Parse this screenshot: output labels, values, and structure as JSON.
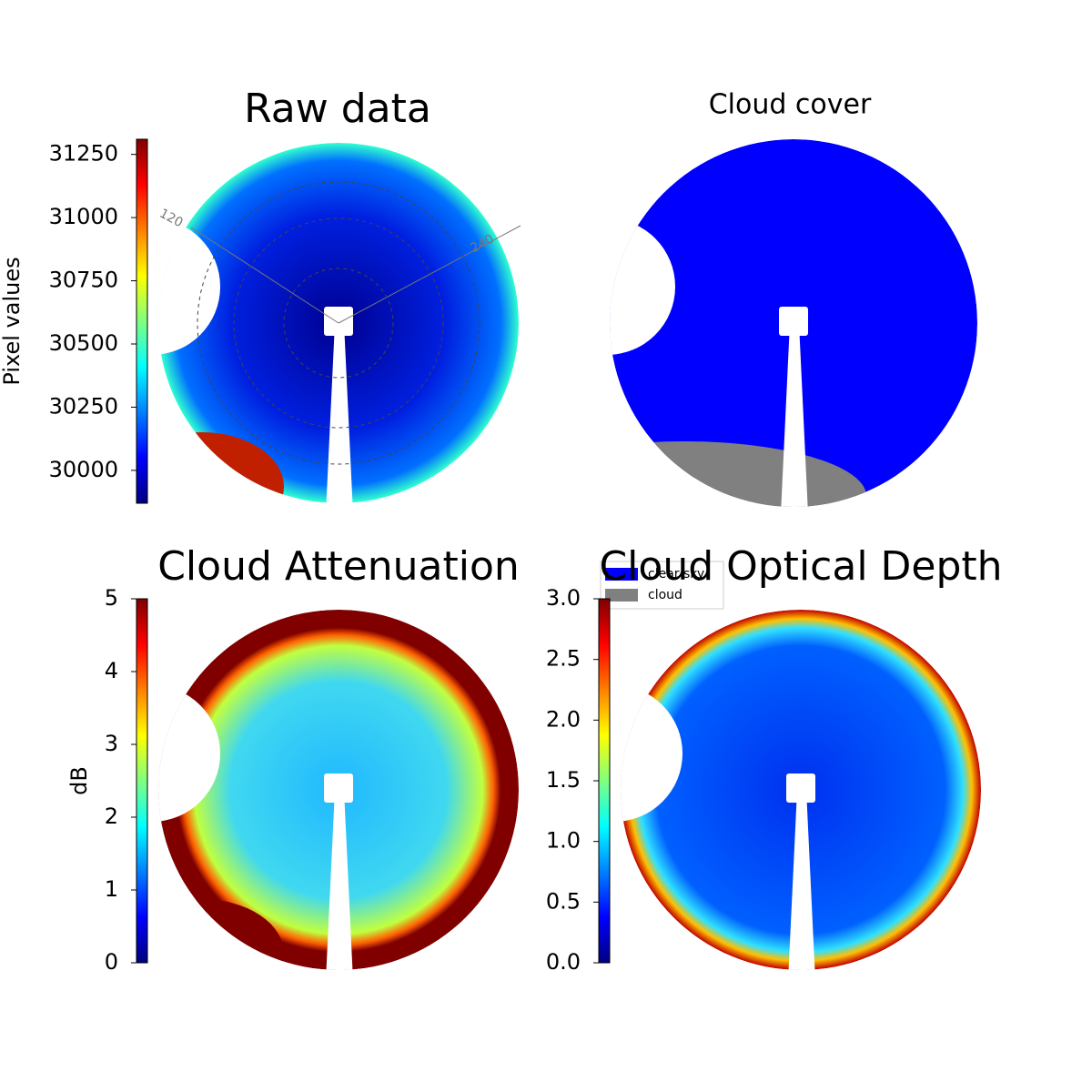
{
  "chart_data": [
    {
      "type": "image",
      "title": "Raw data",
      "annotations": [
        "120",
        "240"
      ],
      "colorbar": {
        "label": "Pixel values",
        "lim": [
          29870,
          31310
        ],
        "ticks": [
          30000,
          30250,
          30500,
          30750,
          31000,
          31250
        ]
      }
    },
    {
      "type": "image",
      "title": "Cloud cover",
      "legend": [
        {
          "name": "clear sky",
          "color": "#0000ff"
        },
        {
          "name": "cloud",
          "color": "#808080"
        }
      ]
    },
    {
      "type": "image",
      "title": "Cloud Attenuation",
      "colorbar": {
        "label": "dB",
        "lim": [
          0,
          5
        ],
        "ticks": [
          0,
          1,
          2,
          3,
          4,
          5
        ]
      }
    },
    {
      "type": "image",
      "title": "Cloud Optical Depth",
      "colorbar": {
        "lim": [
          0,
          3
        ],
        "ticks": [
          {
            "value": 0,
            "label": "0.0"
          },
          0.5,
          {
            "value": 1,
            "label": "1.0"
          },
          1.5,
          {
            "value": 2,
            "label": "2.0"
          },
          2.5,
          {
            "value": 3,
            "label": "3.0"
          }
        ]
      }
    }
  ]
}
